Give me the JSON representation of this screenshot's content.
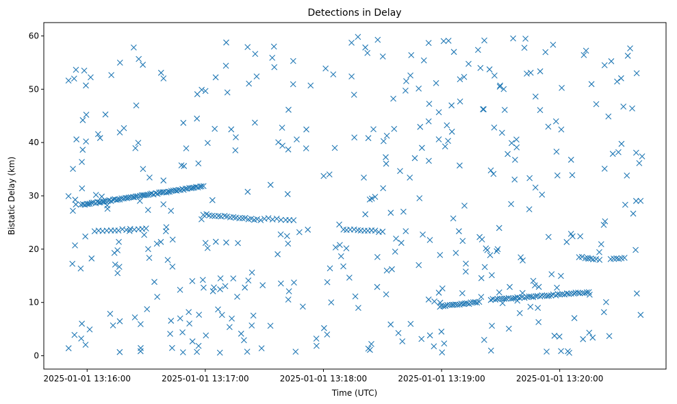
{
  "chart_data": {
    "type": "scatter",
    "title": "Detections in Delay",
    "xlabel": "Time (UTC)",
    "ylabel": "Bistatic Delay (km)",
    "marker": "x",
    "color": "#1f77b4",
    "x_axis_kind": "time",
    "xlim": [
      "2025-01-01 13:15:38",
      "2025-01-01 13:20:54"
    ],
    "ylim": [
      -2.5,
      62.5
    ],
    "x_ticks": [
      "2025-01-01 13:16:00",
      "2025-01-01 13:17:00",
      "2025-01-01 13:18:00",
      "2025-01-01 13:19:00",
      "2025-01-01 13:20:00"
    ],
    "y_ticks": [
      0,
      10,
      20,
      30,
      40,
      50,
      60
    ],
    "grid": false,
    "legend": "none",
    "series": [
      {
        "tracks": [
          {
            "from": "2025-01-01 13:15:57",
            "to": "2025-01-01 13:16:59",
            "y_start": 28.3,
            "y_end": 31.8,
            "count": 70
          },
          {
            "from": "2025-01-01 13:16:04",
            "to": "2025-01-01 13:16:30",
            "y_start": 23.4,
            "y_end": 23.8,
            "count": 14
          },
          {
            "from": "2025-01-01 13:16:59",
            "to": "2025-01-01 13:17:28",
            "y_start": 26.5,
            "y_end": 25.5,
            "count": 20
          },
          {
            "from": "2025-01-01 13:17:30",
            "to": "2025-01-01 13:17:45",
            "y_start": 25.8,
            "y_end": 25.4,
            "count": 8
          },
          {
            "from": "2025-01-01 13:18:10",
            "to": "2025-01-01 13:18:30",
            "y_start": 23.7,
            "y_end": 23.3,
            "count": 12
          },
          {
            "from": "2025-01-01 13:18:59",
            "to": "2025-01-01 13:19:18",
            "y_start": 9.3,
            "y_end": 10.0,
            "count": 20
          },
          {
            "from": "2025-01-01 13:19:25",
            "to": "2025-01-01 13:20:15",
            "y_start": 10.5,
            "y_end": 11.9,
            "count": 45
          },
          {
            "from": "2025-01-01 13:20:10",
            "to": "2025-01-01 13:20:20",
            "y_start": 18.5,
            "y_end": 18.0,
            "count": 8
          },
          {
            "from": "2025-01-01 13:20:26",
            "to": "2025-01-01 13:20:33",
            "y_start": 18.1,
            "y_end": 18.4,
            "count": 6
          }
        ],
        "clutter": {
          "count": 430,
          "y_range": [
            0.5,
            60
          ],
          "spread": "uniform across the time range"
        }
      }
    ]
  }
}
